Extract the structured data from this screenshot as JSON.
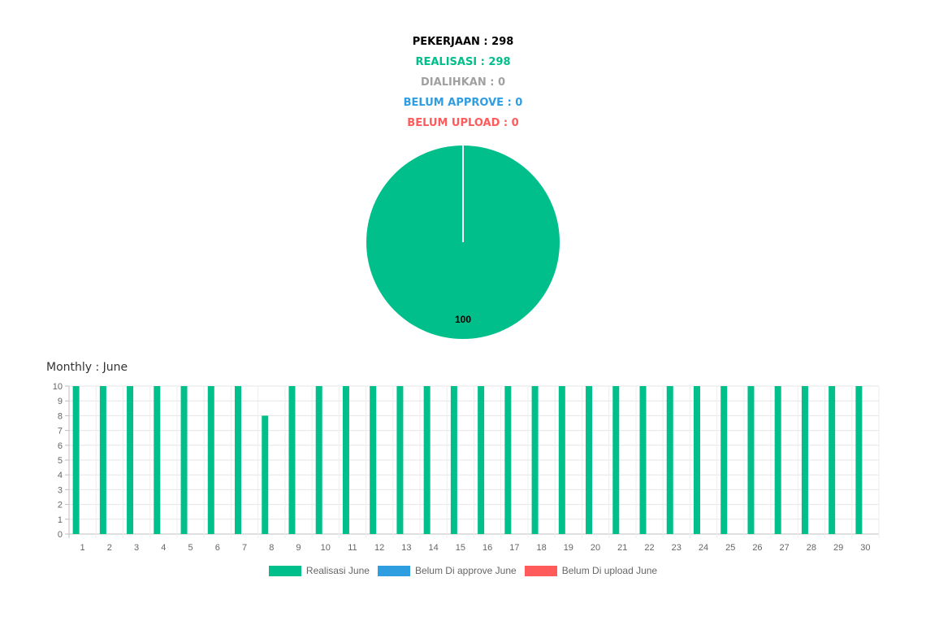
{
  "stats": {
    "pekerjaan": "PEKERJAAN : 298",
    "realisasi": "REALISASI : 298",
    "dialihkan": "DIALIHKAN : 0",
    "belum_approve": "BELUM APPROVE : 0",
    "belum_upload": "BELUM UPLOAD : 0"
  },
  "colors": {
    "pekerjaan": "#000000",
    "realisasi": "#00bf8a",
    "dialihkan": "#a0a0a0",
    "belum_approve": "#2f9ee0",
    "belum_upload": "#ff5b5b"
  },
  "monthly_title": "Monthly : June",
  "chart_data": [
    {
      "type": "pie",
      "values": [
        100
      ],
      "data_labels": [
        "100"
      ],
      "colors": [
        "#00bf8a"
      ]
    },
    {
      "type": "bar",
      "title": "Monthly : June",
      "categories": [
        "1",
        "2",
        "3",
        "4",
        "5",
        "6",
        "7",
        "8",
        "9",
        "10",
        "11",
        "12",
        "13",
        "14",
        "15",
        "16",
        "17",
        "18",
        "19",
        "20",
        "21",
        "22",
        "23",
        "24",
        "25",
        "26",
        "27",
        "28",
        "29",
        "30"
      ],
      "series": [
        {
          "name": "Realisasi June",
          "color": "#00bf8a",
          "values": [
            10,
            10,
            10,
            10,
            10,
            10,
            10,
            8,
            10,
            10,
            10,
            10,
            10,
            10,
            10,
            10,
            10,
            10,
            10,
            10,
            10,
            10,
            10,
            10,
            10,
            10,
            10,
            10,
            10,
            10
          ]
        },
        {
          "name": "Belum Di approve June",
          "color": "#2f9ee0",
          "values": [
            0,
            0,
            0,
            0,
            0,
            0,
            0,
            0,
            0,
            0,
            0,
            0,
            0,
            0,
            0,
            0,
            0,
            0,
            0,
            0,
            0,
            0,
            0,
            0,
            0,
            0,
            0,
            0,
            0,
            0
          ]
        },
        {
          "name": "Belum Di upload June",
          "color": "#ff5b5b",
          "values": [
            0,
            0,
            0,
            0,
            0,
            0,
            0,
            0,
            0,
            0,
            0,
            0,
            0,
            0,
            0,
            0,
            0,
            0,
            0,
            0,
            0,
            0,
            0,
            0,
            0,
            0,
            0,
            0,
            0,
            0
          ]
        }
      ],
      "ylim": [
        0,
        10
      ],
      "yticks": [
        "0",
        "1",
        "2",
        "3",
        "4",
        "5",
        "6",
        "7",
        "8",
        "9",
        "10"
      ],
      "grid": true,
      "legend": "bottom"
    }
  ]
}
